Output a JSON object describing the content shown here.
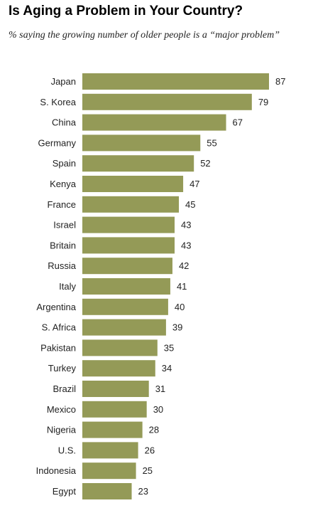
{
  "header": {
    "title": "Is Aging a Problem in Your Country?",
    "subtitle": "% saying the growing number of older people is a “major problem”"
  },
  "chart_data": {
    "type": "bar",
    "orientation": "horizontal",
    "title": "Is Aging a Problem in Your Country?",
    "subtitle": "% saying the growing number of older people is a “major problem”",
    "categories": [
      "Japan",
      "S. Korea",
      "China",
      "Germany",
      "Spain",
      "Kenya",
      "France",
      "Israel",
      "Britain",
      "Russia",
      "Italy",
      "Argentina",
      "S. Africa",
      "Pakistan",
      "Turkey",
      "Brazil",
      "Mexico",
      "Nigeria",
      "U.S.",
      "Indonesia",
      "Egypt"
    ],
    "values": [
      87,
      79,
      67,
      55,
      52,
      47,
      45,
      43,
      43,
      42,
      41,
      40,
      39,
      35,
      34,
      31,
      30,
      28,
      26,
      25,
      23
    ],
    "xlim": [
      0,
      87
    ],
    "grid": false,
    "legend": "none",
    "colors": {
      "bar": "#949a57"
    }
  }
}
